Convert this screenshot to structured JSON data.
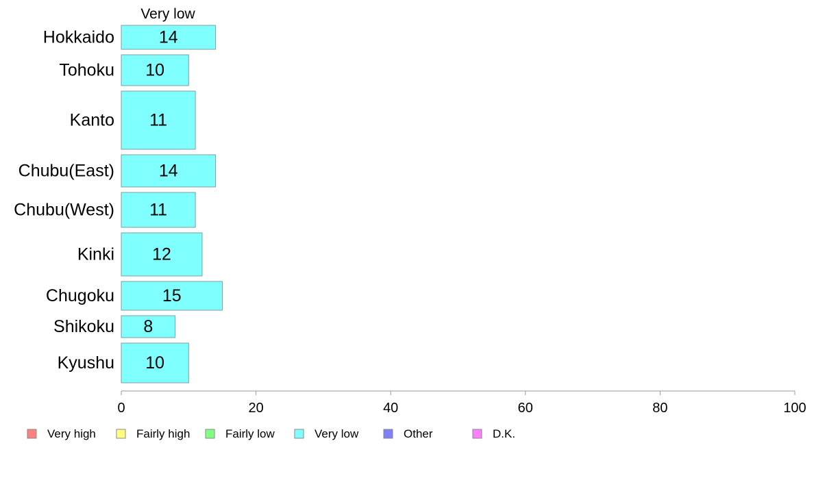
{
  "chart_data": {
    "type": "bar",
    "orientation": "horizontal",
    "stacked": true,
    "categories": [
      "Hokkaido",
      "Tohoku",
      "Kanto",
      "Chubu(East)",
      "Chubu(West)",
      "Kinki",
      "Chugoku",
      "Shikoku",
      "Kyushu"
    ],
    "series": [
      {
        "name": "Very low",
        "values": [
          14,
          10,
          11,
          14,
          11,
          12,
          15,
          8,
          10
        ],
        "color": "#80ffff"
      }
    ],
    "series_header": "Very low",
    "xlim": [
      0,
      100
    ],
    "xticks": [
      0,
      20,
      40,
      60,
      80,
      100
    ],
    "grid": false,
    "legend": {
      "placement": "bottom",
      "entries": [
        {
          "label": "Very high",
          "color": "#ff8080"
        },
        {
          "label": "Fairly high",
          "color": "#ffff80"
        },
        {
          "label": "Fairly low",
          "color": "#80ff80"
        },
        {
          "label": "Very low",
          "color": "#80ffff"
        },
        {
          "label": "Other",
          "color": "#8080ff"
        },
        {
          "label": "D.K.",
          "color": "#ff80ff"
        }
      ]
    }
  }
}
